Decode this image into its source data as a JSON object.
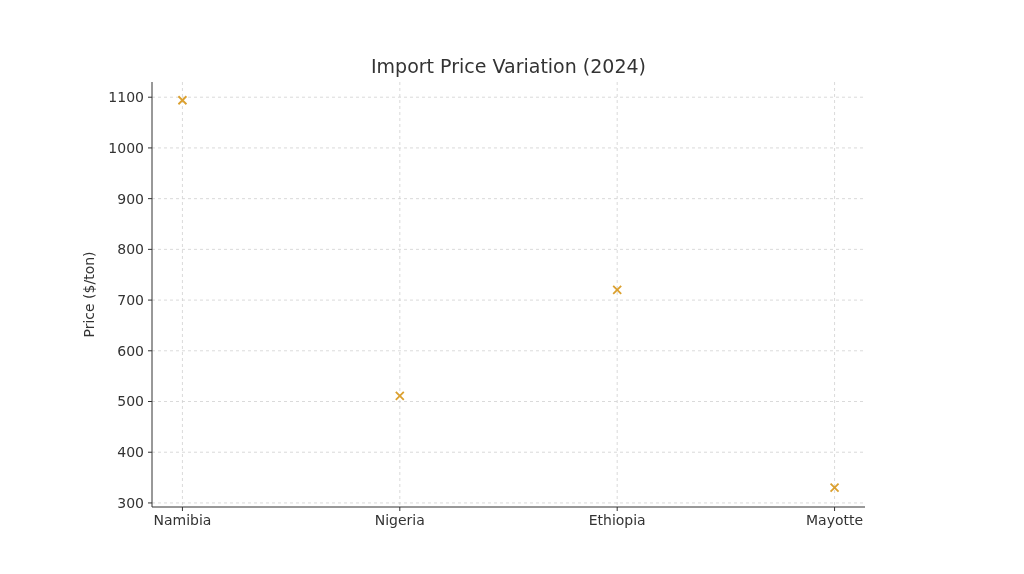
{
  "chart_data": {
    "type": "scatter",
    "title": "Import Price Variation (2024)",
    "ylabel": "Price ($/ton)",
    "categories": [
      "Namibia",
      "Nigeria",
      "Ethiopia",
      "Mayotte"
    ],
    "series": [
      {
        "color": "#dba02f",
        "values": [
          1094,
          511,
          720,
          330
        ]
      }
    ],
    "ylim": [
      292,
      1130
    ],
    "yticks": [
      300,
      400,
      500,
      600,
      700,
      800,
      900,
      1000,
      1100
    ],
    "grid": true,
    "marker": "cross"
  }
}
